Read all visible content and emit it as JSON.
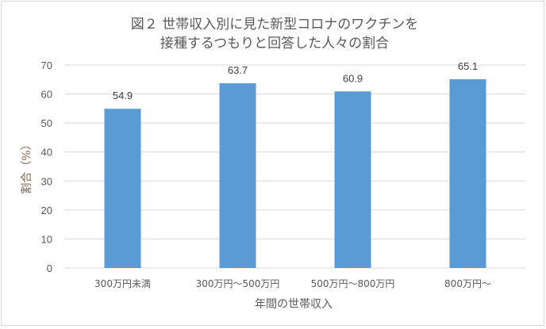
{
  "chart_data": {
    "type": "bar",
    "title_lines": [
      "図２ 世帯収入別に見た新型コロナのワクチンを",
      "接種するつもりと回答した人々の割合"
    ],
    "categories": [
      "300万円未満",
      "300万円～500万円",
      "500万円～800万円",
      "800万円～"
    ],
    "values": [
      54.9,
      63.7,
      60.9,
      65.1
    ],
    "data_labels": [
      "54.9",
      "63.7",
      "60.9",
      "65.1"
    ],
    "xlabel": "年間の世帯収入",
    "ylabel": "割合（%）",
    "ylim": [
      0,
      70
    ],
    "yticks": [
      0,
      10,
      20,
      30,
      40,
      50,
      60,
      70
    ],
    "grid": true,
    "bar_color": "#5b9bd5",
    "legend": "none"
  }
}
